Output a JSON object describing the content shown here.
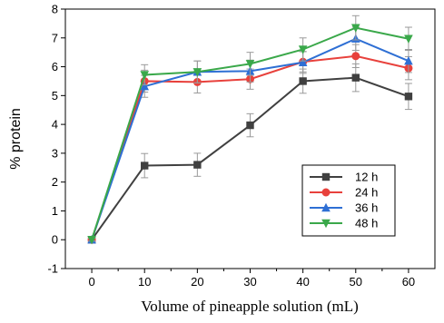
{
  "chart_data": {
    "type": "line",
    "title": "",
    "xlabel": "Volume of pineapple solution (mL)",
    "ylabel": "% protein",
    "x": [
      0,
      10,
      20,
      30,
      40,
      50,
      60
    ],
    "xlim": [
      -5,
      65
    ],
    "ylim": [
      -1,
      8
    ],
    "xticks": [
      0,
      10,
      20,
      30,
      40,
      50,
      60
    ],
    "yticks": [
      -1,
      0,
      1,
      2,
      3,
      4,
      5,
      6,
      7,
      8
    ],
    "grid": false,
    "legend": "center-right",
    "series": [
      {
        "name": "12 h",
        "color": "#404040",
        "marker": "square",
        "values": [
          0.0,
          2.57,
          2.6,
          3.97,
          5.5,
          5.62,
          4.97
        ],
        "errors": [
          0.05,
          0.42,
          0.4,
          0.4,
          0.42,
          0.48,
          0.45
        ]
      },
      {
        "name": "24 h",
        "color": "#e8413c",
        "marker": "circle",
        "values": [
          0.0,
          5.5,
          5.47,
          5.57,
          6.17,
          6.37,
          5.95
        ],
        "errors": [
          0.05,
          0.38,
          0.38,
          0.35,
          0.35,
          0.4,
          0.4
        ]
      },
      {
        "name": "36 h",
        "color": "#2e6fd4",
        "marker": "triangle-up",
        "values": [
          0.0,
          5.32,
          5.82,
          5.85,
          6.15,
          6.97,
          6.2
        ],
        "errors": [
          0.05,
          0.38,
          0.38,
          0.38,
          0.38,
          0.4,
          0.4
        ]
      },
      {
        "name": "48 h",
        "color": "#3aa84a",
        "marker": "triangle-down",
        "values": [
          0.0,
          5.72,
          5.82,
          6.1,
          6.6,
          7.35,
          6.97
        ],
        "errors": [
          0.05,
          0.35,
          0.38,
          0.4,
          0.4,
          0.42,
          0.4
        ]
      }
    ]
  }
}
